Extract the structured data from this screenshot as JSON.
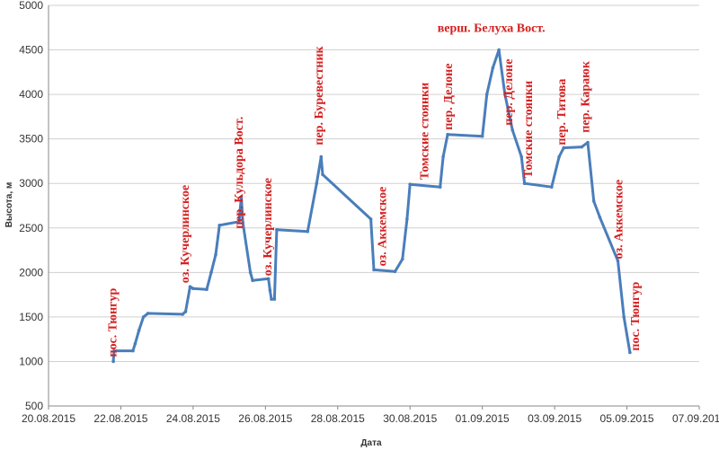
{
  "chart_data": {
    "type": "line",
    "xlabel": "Дата",
    "ylabel": "Высота, м",
    "ylim": [
      500,
      5000
    ],
    "yticks": [
      500,
      1000,
      1500,
      2000,
      2500,
      3000,
      3500,
      4000,
      4500,
      5000
    ],
    "xlim": [
      "2015-08-20",
      "2015-09-07"
    ],
    "xticks": [
      {
        "date": "2015-08-20",
        "label": "20.08.2015"
      },
      {
        "date": "2015-08-22",
        "label": "22.08.2015"
      },
      {
        "date": "2015-08-24",
        "label": "24.08.2015"
      },
      {
        "date": "2015-08-26",
        "label": "26.08.2015"
      },
      {
        "date": "2015-08-28",
        "label": "28.08.2015"
      },
      {
        "date": "2015-08-30",
        "label": "30.08.2015"
      },
      {
        "date": "2015-09-01",
        "label": "01.09.2015"
      },
      {
        "date": "2015-09-03",
        "label": "03.09.2015"
      },
      {
        "date": "2015-09-05",
        "label": "05.09.2015"
      },
      {
        "date": "2015-09-07",
        "label": "07.09.2015"
      }
    ],
    "grid": "horizontal",
    "legend": "none",
    "line_color": "#4a7ebb",
    "annotation_color": "#d42020",
    "series": [
      {
        "values": [
          [
            "2015-08-21T19:00",
            1000
          ],
          [
            "2015-08-21T19:30",
            1120
          ],
          [
            "2015-08-22T08:00",
            1120
          ],
          [
            "2015-08-22T09:30",
            1200
          ],
          [
            "2015-08-22T12:00",
            1350
          ],
          [
            "2015-08-22T15:00",
            1500
          ],
          [
            "2015-08-22T18:00",
            1540
          ],
          [
            "2015-08-23T17:00",
            1530
          ],
          [
            "2015-08-23T19:00",
            1560
          ],
          [
            "2015-08-23T22:00",
            1840
          ],
          [
            "2015-08-24T00:00",
            1820
          ],
          [
            "2015-08-24T09:00",
            1810
          ],
          [
            "2015-08-24T12:00",
            2000
          ],
          [
            "2015-08-24T15:00",
            2200
          ],
          [
            "2015-08-24T17:30",
            2530
          ],
          [
            "2015-08-25T06:30",
            2570
          ],
          [
            "2015-08-25T08:00",
            2850
          ],
          [
            "2015-08-25T09:00",
            2560
          ],
          [
            "2015-08-25T14:00",
            2000
          ],
          [
            "2015-08-25T15:30",
            1910
          ],
          [
            "2015-08-26T02:00",
            1930
          ],
          [
            "2015-08-26T03:00",
            1800
          ],
          [
            "2015-08-26T04:00",
            1700
          ],
          [
            "2015-08-26T06:00",
            1700
          ],
          [
            "2015-08-26T07:30",
            2480
          ],
          [
            "2015-08-27T04:00",
            2460
          ],
          [
            "2015-08-27T10:00",
            3000
          ],
          [
            "2015-08-27T13:00",
            3300
          ],
          [
            "2015-08-27T14:00",
            3100
          ],
          [
            "2015-08-28T22:00",
            2600
          ],
          [
            "2015-08-29T00:00",
            2030
          ],
          [
            "2015-08-29T14:00",
            2010
          ],
          [
            "2015-08-29T19:00",
            2150
          ],
          [
            "2015-08-29T22:00",
            2600
          ],
          [
            "2015-08-30T00:00",
            2990
          ],
          [
            "2015-08-30T20:00",
            2960
          ],
          [
            "2015-08-30T22:00",
            3300
          ],
          [
            "2015-08-31T01:00",
            3550
          ],
          [
            "2015-09-01T00:00",
            3530
          ],
          [
            "2015-09-01T03:00",
            4000
          ],
          [
            "2015-09-01T07:00",
            4300
          ],
          [
            "2015-09-01T11:00",
            4500
          ],
          [
            "2015-09-01T15:00",
            4000
          ],
          [
            "2015-09-01T20:00",
            3600
          ],
          [
            "2015-09-02T02:00",
            3300
          ],
          [
            "2015-09-02T04:00",
            3000
          ],
          [
            "2015-09-02T22:00",
            2960
          ],
          [
            "2015-09-03T03:00",
            3300
          ],
          [
            "2015-09-03T06:00",
            3400
          ],
          [
            "2015-09-03T18:00",
            3410
          ],
          [
            "2015-09-03T22:00",
            3460
          ],
          [
            "2015-09-04T02:00",
            2800
          ],
          [
            "2015-09-04T06:00",
            2620
          ],
          [
            "2015-09-04T18:00",
            2130
          ],
          [
            "2015-09-04T22:00",
            1500
          ],
          [
            "2015-09-05T02:00",
            1100
          ]
        ]
      }
    ],
    "annotations": [
      {
        "text": "пос. Тюнгур",
        "date": "2015-08-21T21:00",
        "value": 1050,
        "rotate": -90,
        "anchor": "start"
      },
      {
        "text": "оз. Кучерлинское",
        "date": "2015-08-23T21:00",
        "value": 1880,
        "rotate": -90,
        "anchor": "start"
      },
      {
        "text": "пер. Кульдора Вост.",
        "date": "2015-08-25T09:00",
        "value": 2490,
        "rotate": -90,
        "anchor": "start"
      },
      {
        "text": "оз. Кучерлинское",
        "date": "2015-08-26T04:00",
        "value": 1960,
        "rotate": -90,
        "anchor": "start"
      },
      {
        "text": "пер. Буревестник",
        "date": "2015-08-27T14:00",
        "value": 3430,
        "rotate": -90,
        "anchor": "start"
      },
      {
        "text": "оз. Аккемское",
        "date": "2015-08-29T08:00",
        "value": 2070,
        "rotate": -90,
        "anchor": "start"
      },
      {
        "text": "Томские стоянки",
        "date": "2015-08-30T12:00",
        "value": 3040,
        "rotate": -90,
        "anchor": "start"
      },
      {
        "text": "пер. Делоне",
        "date": "2015-08-31T04:00",
        "value": 3600,
        "rotate": -90,
        "anchor": "start"
      },
      {
        "text": "верш. Белуха Вост.",
        "date": "2015-09-01T06:00",
        "value": 4700,
        "rotate": 0,
        "anchor": "middle"
      },
      {
        "text": "пер. Делоне",
        "date": "2015-09-01T20:00",
        "value": 3650,
        "rotate": -90,
        "anchor": "start"
      },
      {
        "text": "Томские стоянки",
        "date": "2015-09-02T09:00",
        "value": 3060,
        "rotate": -90,
        "anchor": "start"
      },
      {
        "text": "пер. Титова",
        "date": "2015-09-03T07:00",
        "value": 3430,
        "rotate": -90,
        "anchor": "start"
      },
      {
        "text": "пер. Караюк",
        "date": "2015-09-03T23:00",
        "value": 3570,
        "rotate": -90,
        "anchor": "start"
      },
      {
        "text": "оз. Аккемское",
        "date": "2015-09-04T21:00",
        "value": 2150,
        "rotate": -90,
        "anchor": "start"
      },
      {
        "text": "пос. Тюнгур",
        "date": "2015-09-05T08:00",
        "value": 1120,
        "rotate": -90,
        "anchor": "start"
      }
    ]
  }
}
